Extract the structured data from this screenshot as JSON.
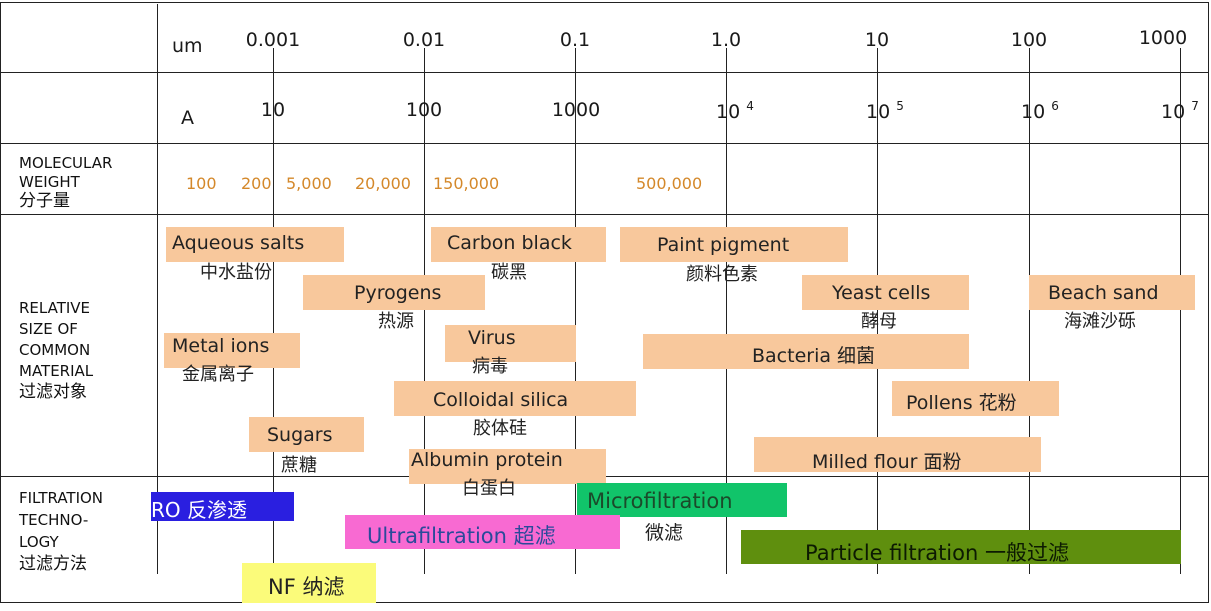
{
  "scale_um": {
    "unit": "um",
    "ticks": [
      "0.001",
      "0.01",
      "0.1",
      "1.0",
      "10",
      "100",
      "1000"
    ]
  },
  "scale_a": {
    "unit": "A",
    "ticks": [
      "10",
      "100",
      "1000"
    ],
    "power_base": "10",
    "powers": [
      "4",
      "5",
      "6",
      "7"
    ]
  },
  "rows": {
    "molecular_weight": [
      "MOLECULAR",
      "WEIGHT",
      "分子量"
    ],
    "relative_size": [
      "RELATIVE",
      "SIZE OF",
      "COMMON",
      "MATERIAL",
      "过滤对象"
    ],
    "filtration": [
      "FILTRATION",
      "TECHNO-",
      "LOGY",
      "过滤方法"
    ]
  },
  "molecular_weights": [
    "100",
    "200",
    "5,000",
    "20,000",
    "150,000",
    "500,000"
  ],
  "materials": {
    "aqueous_salts": {
      "en": "Aqueous salts",
      "cn": "中水盐份"
    },
    "carbon_black": {
      "en": "Carbon black",
      "cn": "碳黑"
    },
    "paint_pigment": {
      "en": "Paint pigment",
      "cn": "颜料色素"
    },
    "pyrogens": {
      "en": "Pyrogens",
      "cn": "热源"
    },
    "yeast_cells": {
      "en": "Yeast cells",
      "cn": "酵母"
    },
    "beach_sand": {
      "en": "Beach sand",
      "cn": "海滩沙砾"
    },
    "metal_ions": {
      "en": "Metal ions",
      "cn": "金属离子"
    },
    "virus": {
      "en": "Virus",
      "cn": "病毒"
    },
    "bacteria": {
      "en": "Bacteria 细菌"
    },
    "colloidal_silica": {
      "en": "Colloidal silica",
      "cn": "胶体硅"
    },
    "pollens": {
      "en": "Pollens 花粉"
    },
    "sugars": {
      "en": "Sugars",
      "cn": "蔗糖"
    },
    "albumin_protein": {
      "en": "Albumin protein",
      "cn": "白蛋白"
    },
    "milled_flour": {
      "en": "Milled flour 面粉"
    }
  },
  "technologies": {
    "ro": {
      "label": "RO 反渗透",
      "color": "#2a1fe0",
      "text_color": "#ffffff"
    },
    "microfiltration": {
      "label": "Microfiltration",
      "cn": "微滤",
      "color": "#11c46a",
      "text_color": "#1b4a2a"
    },
    "ultrafiltration": {
      "label": "Ultrafiltration 超滤",
      "color": "#f86ad2",
      "text_color": "#2a4a9a"
    },
    "particle": {
      "label": "Particle filtration 一般过滤",
      "color": "#5f8f0e",
      "text_color": "#0c1a02"
    },
    "nf": {
      "label": "NF 纳滤",
      "color": "#fbfb7a",
      "text_color": "#222222"
    }
  }
}
